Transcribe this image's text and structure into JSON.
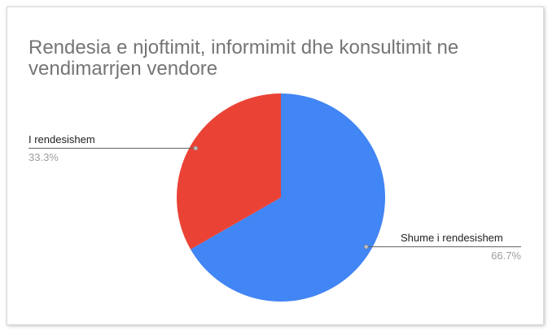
{
  "chart_data": {
    "type": "pie",
    "title": "Rendesia e njoftimit, informimit dhe konsultimit ne vendimarrjen vendore",
    "categories": [
      "Shume i rendesishem",
      "I rendesishem"
    ],
    "values": [
      66.7,
      33.3
    ],
    "value_labels": [
      "66.7%",
      "33.3%"
    ],
    "colors": [
      "#4285f4",
      "#ea4335"
    ]
  }
}
